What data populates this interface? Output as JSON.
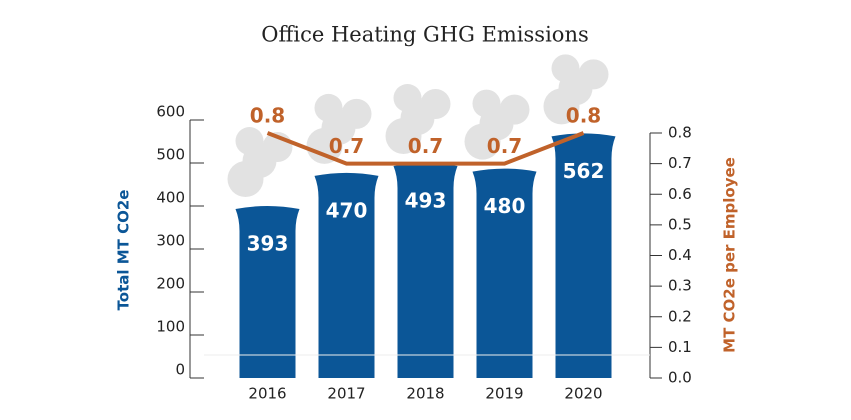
{
  "chart_data": {
    "type": "bar",
    "title": "Office Heating GHG Emissions",
    "categories": [
      "2016",
      "2017",
      "2018",
      "2019",
      "2020"
    ],
    "series": [
      {
        "name": "Total MT CO2e",
        "color": "#0b5697",
        "values": [
          393,
          470,
          493,
          480,
          562
        ]
      },
      {
        "name": "MT CO2e per Employee",
        "color": "#c0622a",
        "axis": "y2",
        "values": [
          0.8,
          0.7,
          0.7,
          0.7,
          0.8
        ]
      }
    ],
    "ylabel": "Total MT CO2e",
    "y2label": "MT CO2e per Employee",
    "ylim": [
      0,
      600
    ],
    "yticks": [
      0,
      100,
      200,
      300,
      400,
      500,
      600
    ],
    "y2lim": [
      0,
      0.8
    ],
    "y2ticks": [
      {
        "value": 0,
        "label": "0.0"
      },
      0.1,
      0.2,
      0.3,
      0.4,
      0.5,
      0.6,
      0.7,
      0.8
    ]
  }
}
